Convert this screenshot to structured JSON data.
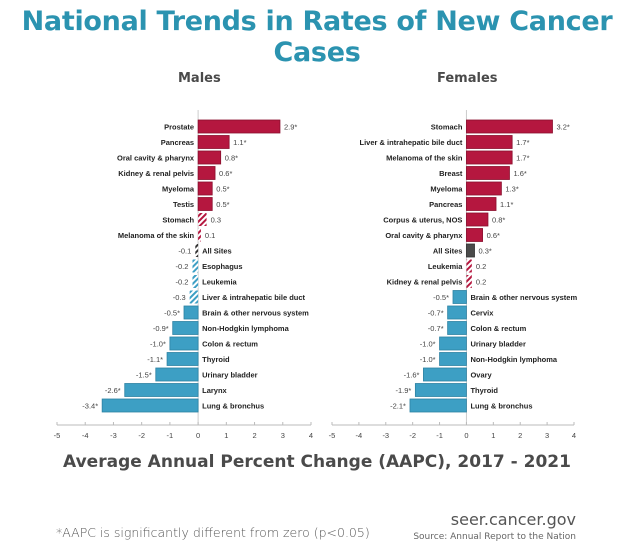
{
  "title": "National Trends in Rates of New Cancer Cases",
  "xlabel": "Average Annual Percent Change (AAPC), 2017 - 2021",
  "footnote": "*AAPC is significantly different from zero (p<0.05)",
  "site": "seer.cancer.gov",
  "source": "Source: Annual Report to the Nation",
  "colors": {
    "increase": "#b5173f",
    "decrease": "#3d9fc4",
    "all_sites_female": "#4a4a4a",
    "title": "#2b93b0"
  },
  "chart_data": [
    {
      "type": "bar",
      "orientation": "horizontal",
      "title": "Males",
      "xlabel": "Average Annual Percent Change (AAPC), 2017 - 2021",
      "xlim": [
        -5,
        4
      ],
      "xticks": [
        "-5",
        "-4",
        "-3",
        "-2",
        "-1",
        "0",
        "1",
        "2",
        "3",
        "4"
      ],
      "grid": false,
      "categories": [
        "Prostate",
        "Pancreas",
        "Oral cavity & pharynx",
        "Kidney & renal pelvis",
        "Myeloma",
        "Testis",
        "Stomach",
        "Melanoma of the skin",
        "All Sites",
        "Esophagus",
        "Leukemia",
        "Liver & intrahepatic bile duct",
        "Brain & other nervous system",
        "Non-Hodgkin lymphoma",
        "Colon & rectum",
        "Thyroid",
        "Urinary bladder",
        "Larynx",
        "Lung & bronchus"
      ],
      "values": [
        2.9,
        1.1,
        0.8,
        0.6,
        0.5,
        0.5,
        0.3,
        0.1,
        -0.1,
        -0.2,
        -0.2,
        -0.3,
        -0.5,
        -0.9,
        -1.0,
        -1.1,
        -1.5,
        -2.6,
        -3.4
      ],
      "labels": [
        "2.9*",
        "1.1*",
        "0.8*",
        "0.6*",
        "0.5*",
        "0.5*",
        "0.3",
        "0.1",
        "-0.1",
        "-0.2",
        "-0.2",
        "-0.3",
        "-0.5*",
        "-0.9*",
        "-1.0*",
        "-1.1*",
        "-1.5*",
        "-2.6*",
        "-3.4*"
      ],
      "significant": [
        true,
        true,
        true,
        true,
        true,
        true,
        false,
        false,
        false,
        false,
        false,
        false,
        true,
        true,
        true,
        true,
        true,
        true,
        true
      ],
      "all_sites_index": 8
    },
    {
      "type": "bar",
      "orientation": "horizontal",
      "title": "Females",
      "xlabel": "Average Annual Percent Change (AAPC), 2017 - 2021",
      "xlim": [
        -5,
        4
      ],
      "xticks": [
        "-5",
        "-4",
        "-3",
        "-2",
        "-1",
        "0",
        "1",
        "2",
        "3",
        "4"
      ],
      "grid": false,
      "categories": [
        "Stomach",
        "Liver & intrahepatic bile duct",
        "Melanoma of the skin",
        "Breast",
        "Myeloma",
        "Pancreas",
        "Corpus & uterus, NOS",
        "Oral cavity & pharynx",
        "All Sites",
        "Leukemia",
        "Kidney & renal pelvis",
        "Brain & other nervous system",
        "Cervix",
        "Colon & rectum",
        "Urinary bladder",
        "Non-Hodgkin lymphoma",
        "Ovary",
        "Thyroid",
        "Lung & bronchus"
      ],
      "values": [
        3.2,
        1.7,
        1.7,
        1.6,
        1.3,
        1.1,
        0.8,
        0.6,
        0.3,
        0.2,
        0.2,
        -0.5,
        -0.7,
        -0.7,
        -1.0,
        -1.0,
        -1.6,
        -1.9,
        -2.1
      ],
      "labels": [
        "3.2*",
        "1.7*",
        "1.7*",
        "1.6*",
        "1.3*",
        "1.1*",
        "0.8*",
        "0.6*",
        "0.3*",
        "0.2",
        "0.2",
        "-0.5*",
        "-0.7*",
        "-0.7*",
        "-1.0*",
        "-1.0*",
        "-1.6*",
        "-1.9*",
        "-2.1*"
      ],
      "significant": [
        true,
        true,
        true,
        true,
        true,
        true,
        true,
        true,
        true,
        false,
        false,
        true,
        true,
        true,
        true,
        true,
        true,
        true,
        true
      ],
      "all_sites_index": 8
    }
  ]
}
